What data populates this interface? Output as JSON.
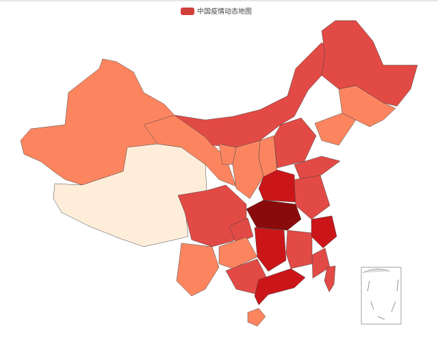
{
  "legend": {
    "label": "中国疫情动态地图",
    "color": "#d13f3a"
  }
}
